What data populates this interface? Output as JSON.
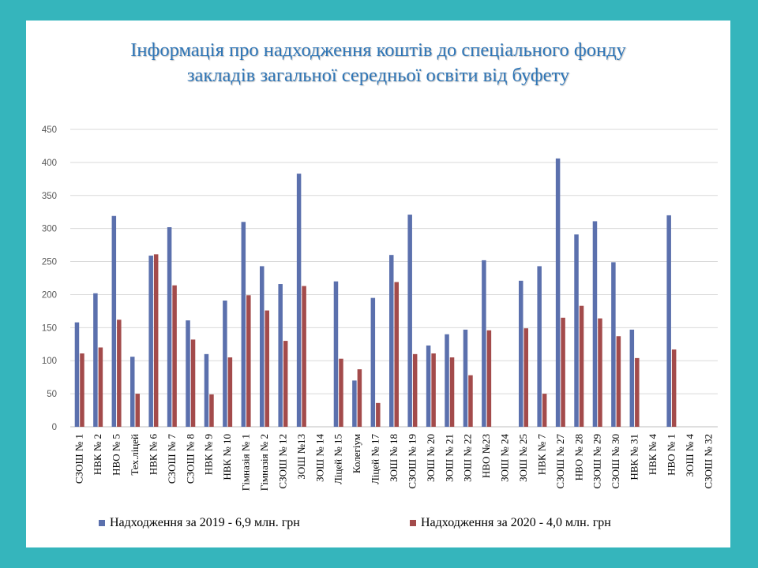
{
  "title": {
    "line1": "Інформація про надходження коштів до спеціального фонду",
    "line2": "закладів загальної середньої освіти від буфету"
  },
  "colors": {
    "background": "#35b5bc",
    "series2019": "#5b70ad",
    "series2020": "#a34b4b",
    "title": "#2e75b6"
  },
  "chart_data": {
    "type": "bar",
    "ylim": [
      0,
      450
    ],
    "yticks": [
      0,
      50,
      100,
      150,
      200,
      250,
      300,
      350,
      400,
      450
    ],
    "grid": true,
    "legend_position": "bottom",
    "categories": [
      "СЗОШ № 1",
      "НВК № 2",
      "НВО № 5",
      "Тех.ліцей",
      "НВК № 6",
      "СЗОШ № 7",
      "СЗОШ № 8",
      "НВК № 9",
      "НВК № 10",
      "Гімназія № 1",
      "Гімназія № 2",
      "СЗОШ № 12",
      "ЗОШ №13",
      "ЗОШ № 14",
      "Ліцей № 15",
      "Колегіум",
      "Ліцей № 17",
      "ЗОШ № 18",
      "СЗОШ № 19",
      "ЗОШ № 20",
      "ЗОШ № 21",
      "ЗОШ № 22",
      "НВО №23",
      "ЗОШ № 24",
      "ЗОШ № 25",
      "НВК № 7",
      "СЗОШ № 27",
      "НВО № 28",
      "СЗОШ № 29",
      "СЗОШ № 30",
      "НВК № 31",
      "НВК № 4",
      "НВО № 1",
      "ЗОШ № 4",
      "СЗОШ № 32"
    ],
    "series": [
      {
        "name": "Надходження за 2019 - 6,9 млн. грн",
        "values": [
          158,
          202,
          319,
          106,
          259,
          302,
          161,
          110,
          191,
          310,
          243,
          216,
          383,
          0,
          220,
          70,
          195,
          260,
          321,
          123,
          140,
          147,
          252,
          0,
          221,
          243,
          406,
          291,
          311,
          249,
          147,
          0,
          320,
          0,
          0
        ]
      },
      {
        "name": "Надходження за 2020 - 4,0 млн. грн",
        "values": [
          111,
          120,
          162,
          50,
          261,
          214,
          132,
          49,
          105,
          199,
          176,
          130,
          213,
          0,
          103,
          87,
          36,
          219,
          110,
          111,
          105,
          78,
          146,
          0,
          149,
          50,
          165,
          183,
          164,
          137,
          104,
          0,
          117,
          0,
          0
        ]
      }
    ]
  }
}
